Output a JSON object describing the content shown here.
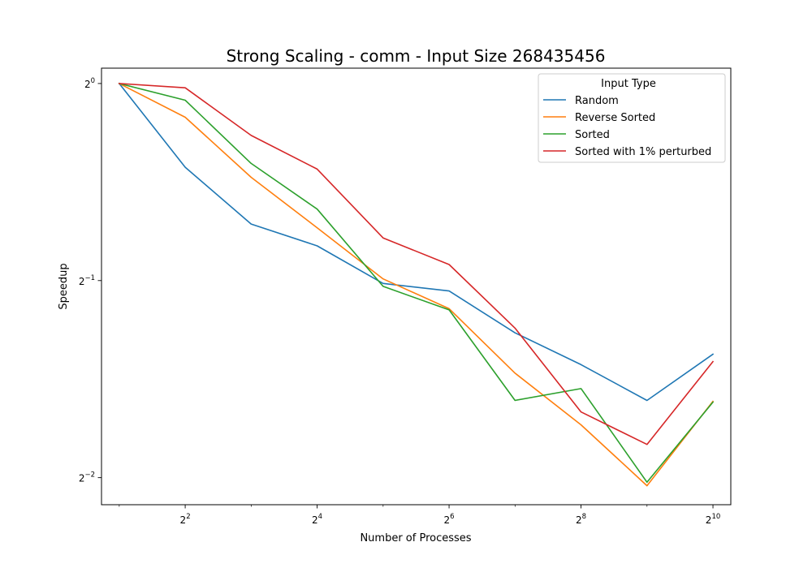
{
  "chart_data": {
    "type": "line",
    "title": "Strong Scaling - comm - Input Size 268435456",
    "xlabel": "Number of Processes",
    "ylabel": "Speedup",
    "x_scale": "log2",
    "y_scale": "log2",
    "x": [
      2,
      4,
      8,
      16,
      32,
      64,
      128,
      256,
      512,
      1024
    ],
    "xlim": [
      1.66,
      1235
    ],
    "ylim": [
      0.2273,
      1.0555
    ],
    "x_ticks": [
      {
        "value": 4,
        "base": "2",
        "exp": "2"
      },
      {
        "value": 16,
        "base": "2",
        "exp": "4"
      },
      {
        "value": 64,
        "base": "2",
        "exp": "6"
      },
      {
        "value": 256,
        "base": "2",
        "exp": "8"
      },
      {
        "value": 1024,
        "base": "2",
        "exp": "10"
      }
    ],
    "y_ticks": [
      {
        "value": 1,
        "base": "2",
        "exp": "0"
      },
      {
        "value": 0.5,
        "base": "2",
        "exp": "−1"
      },
      {
        "value": 0.25,
        "base": "2",
        "exp": "−2"
      }
    ],
    "legend": {
      "title": "Input Type",
      "position": "top-right"
    },
    "series": [
      {
        "name": "Random",
        "color": "#1f77b4",
        "values": [
          1.0,
          0.745,
          0.61,
          0.565,
          0.495,
          0.482,
          0.416,
          0.372,
          0.328,
          0.386
        ]
      },
      {
        "name": "Reverse Sorted",
        "color": "#ff7f0e",
        "values": [
          1.0,
          0.888,
          0.719,
          0.602,
          0.503,
          0.453,
          0.361,
          0.301,
          0.243,
          0.327
        ]
      },
      {
        "name": "Sorted",
        "color": "#2ca02c",
        "values": [
          1.0,
          0.943,
          0.755,
          0.643,
          0.49,
          0.451,
          0.328,
          0.342,
          0.246,
          0.326
        ]
      },
      {
        "name": "Sorted with 1% perturbed",
        "color": "#d62728",
        "values": [
          1.0,
          0.985,
          0.833,
          0.74,
          0.581,
          0.529,
          0.423,
          0.315,
          0.281,
          0.376
        ]
      }
    ]
  }
}
